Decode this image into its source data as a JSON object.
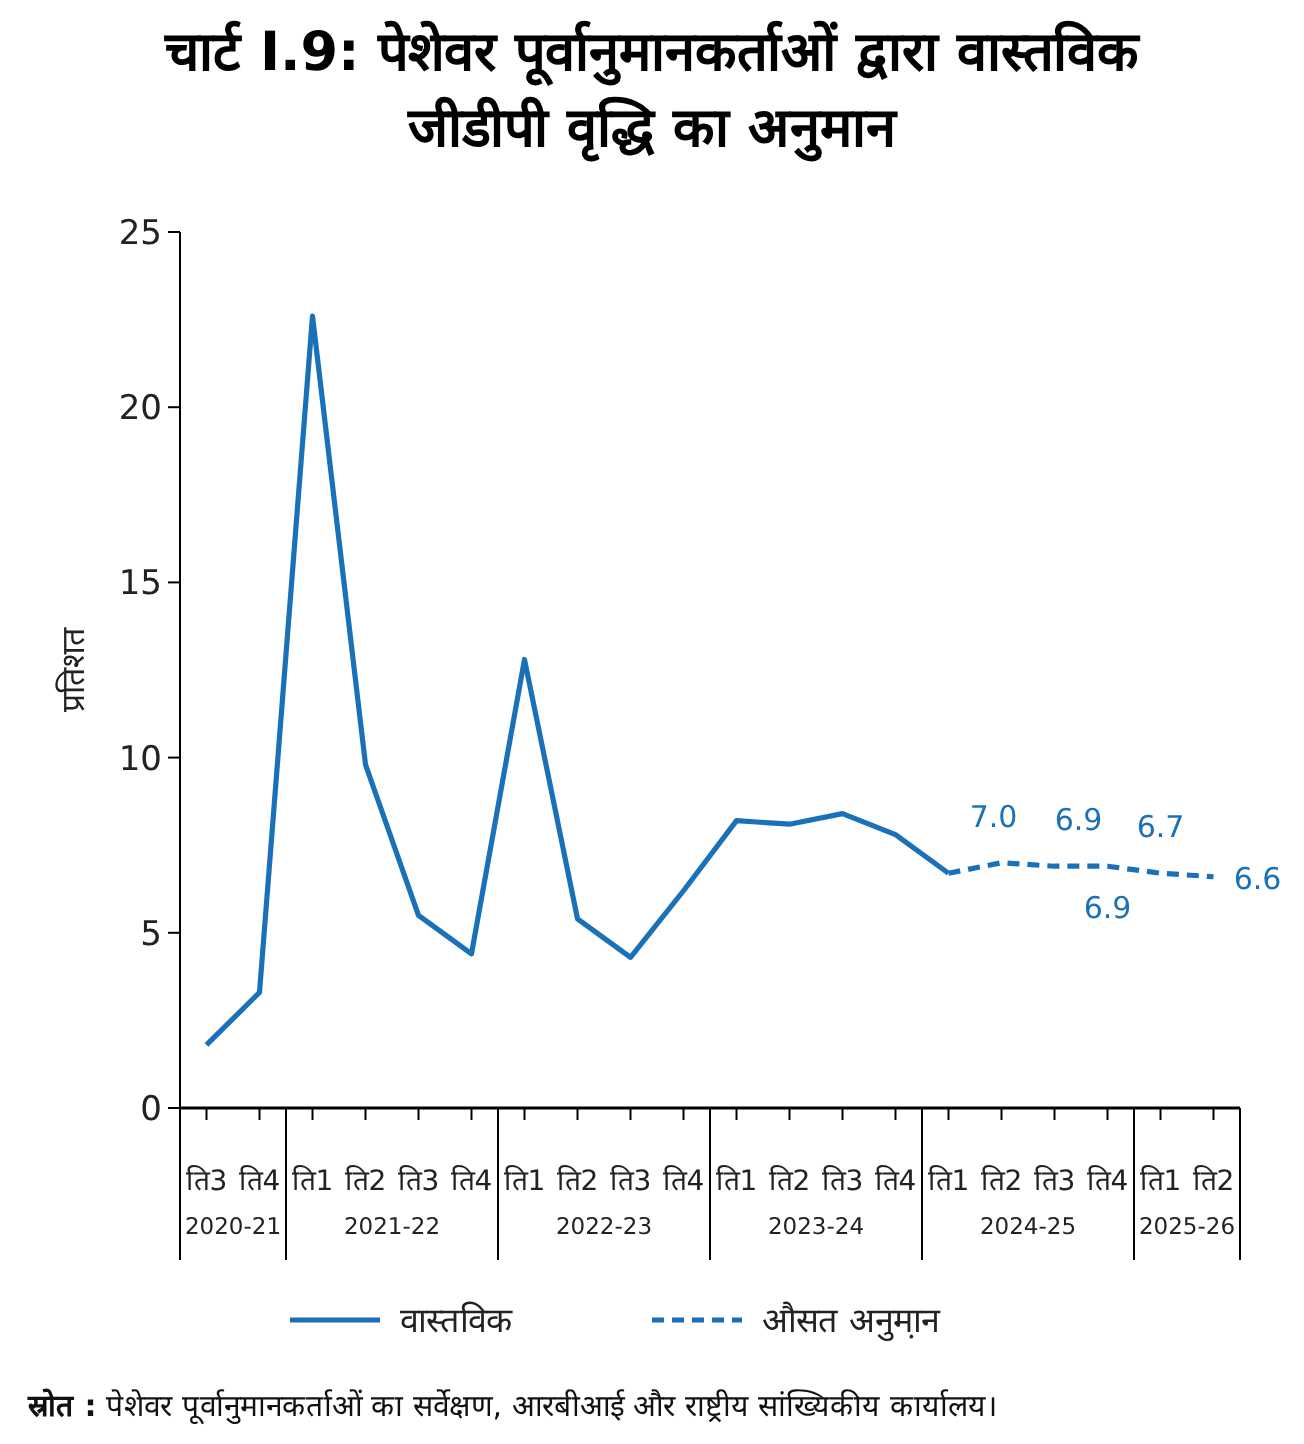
{
  "chart_data": {
    "type": "line",
    "title": "चार्ट I.9: पेशेवर पूर्वानुमानकर्ताओं द्वारा वास्तविक जीडीपी वृद्धि का अनुमान",
    "ylabel": "प्रतिशत",
    "categories": [
      "ति3",
      "ति4",
      "ति1",
      "ति2",
      "ति3",
      "ति4",
      "ति1",
      "ति2",
      "ति3",
      "ति4",
      "ति1",
      "ति2",
      "ति3",
      "ति4",
      "ति1",
      "ति2",
      "ति3",
      "ति4",
      "ति1",
      "ति2"
    ],
    "series": [
      {
        "name": "वास्तविक",
        "color": "#1b71b8",
        "line_style": "solid",
        "values": [
          1.8,
          3.3,
          22.6,
          9.8,
          5.5,
          4.4,
          12.8,
          5.4,
          4.3,
          6.2,
          8.2,
          8.1,
          8.4,
          7.8,
          6.7,
          null,
          null,
          null,
          null,
          null
        ]
      },
      {
        "name": "औसत अनुमा़न",
        "color": "#1b71b8",
        "line_style": "dashed",
        "values": [
          null,
          null,
          null,
          null,
          null,
          null,
          null,
          null,
          null,
          null,
          null,
          null,
          null,
          null,
          6.7,
          7.0,
          6.9,
          6.9,
          6.7,
          6.6
        ],
        "value_labels": [
          null,
          null,
          null,
          null,
          null,
          null,
          null,
          null,
          null,
          null,
          null,
          null,
          null,
          null,
          null,
          "7.0",
          "6.9",
          "6.9",
          "6.7",
          "6.6"
        ]
      }
    ],
    "ylim": [
      0,
      25
    ],
    "yticks": [
      0,
      5,
      10,
      15,
      20,
      25
    ],
    "grid": false,
    "legend": "bottom",
    "marker": "none",
    "annotations": [
      "2020-21",
      "2021-22",
      "2022-23",
      "2023-24",
      "2024-25",
      "2025-26",
      "**स्रोत :** पेशेवर पूर्वानुमानकर्ताओं का सर्वेक्षण, आरबीआई और राष्ट्रीय सांख्यिकीय कार्यालय।"
    ]
  }
}
